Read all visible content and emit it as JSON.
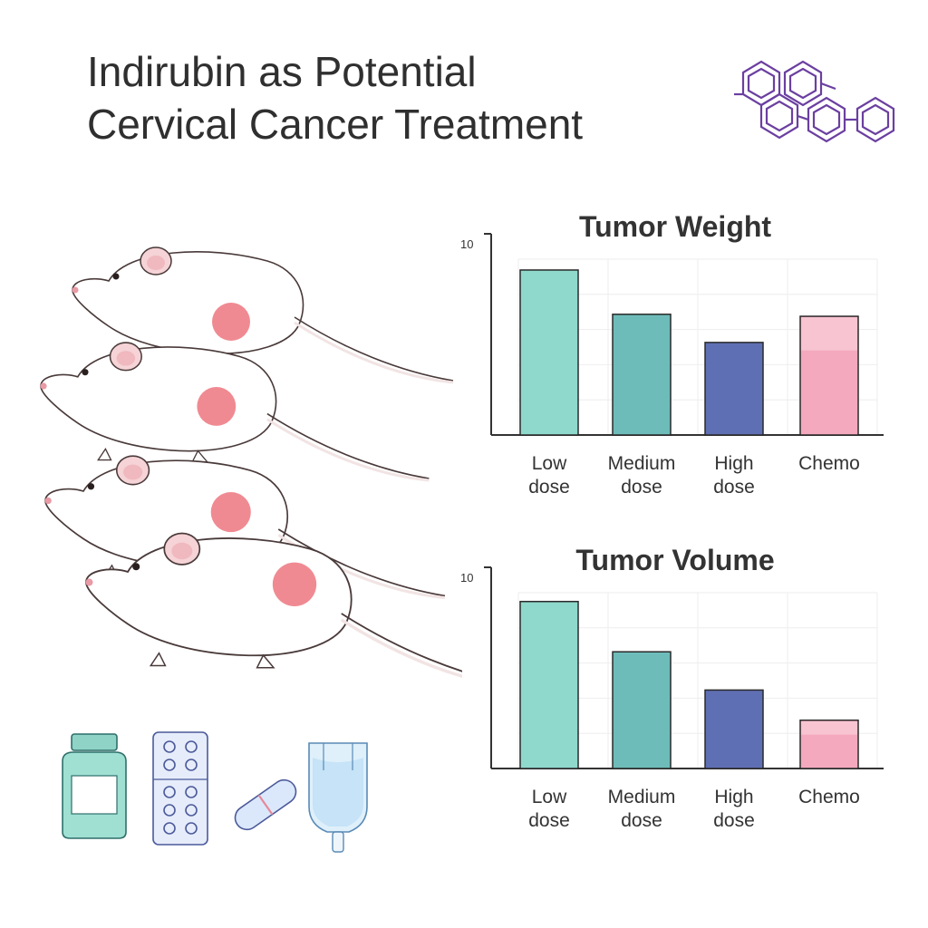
{
  "title": {
    "line1": "Indirubin as Potential",
    "line2": "Cervical Cancer Treatment"
  },
  "colors": {
    "low": "#8ed8cc",
    "medium": "#6ebcb9",
    "high": "#5f6fb3",
    "chemo": "#f4a9bf",
    "chemo_light": "#f8c4d2",
    "outline": "#2a2a2a",
    "molecule": "#6b3fa0"
  },
  "icons": [
    "medicine-bottle-icon",
    "blister-pack-icon",
    "capsule-icon",
    "iv-bag-icon",
    "molecule-structure-icon",
    "mouse-icon"
  ],
  "chart_data": [
    {
      "type": "bar",
      "title": "Tumor Weight",
      "categories": [
        [
          "Low",
          "dose"
        ],
        [
          "Medium",
          "dose"
        ],
        [
          "High",
          "dose"
        ],
        [
          "Chemo"
        ]
      ],
      "values": [
        8.2,
        6.0,
        4.6,
        5.9
      ],
      "y_tick_label": "10",
      "ylim": [
        0,
        10
      ],
      "grid": true,
      "legend": "none"
    },
    {
      "type": "bar",
      "title": "Tumor Volume",
      "categories": [
        [
          "Low",
          "dose"
        ],
        [
          "Medium",
          "dose"
        ],
        [
          "High",
          "dose"
        ],
        [
          "Chemo"
        ]
      ],
      "values": [
        8.3,
        5.8,
        3.9,
        2.4
      ],
      "y_tick_label": "10",
      "ylim": [
        0,
        10
      ],
      "grid": true,
      "legend": "none"
    }
  ]
}
